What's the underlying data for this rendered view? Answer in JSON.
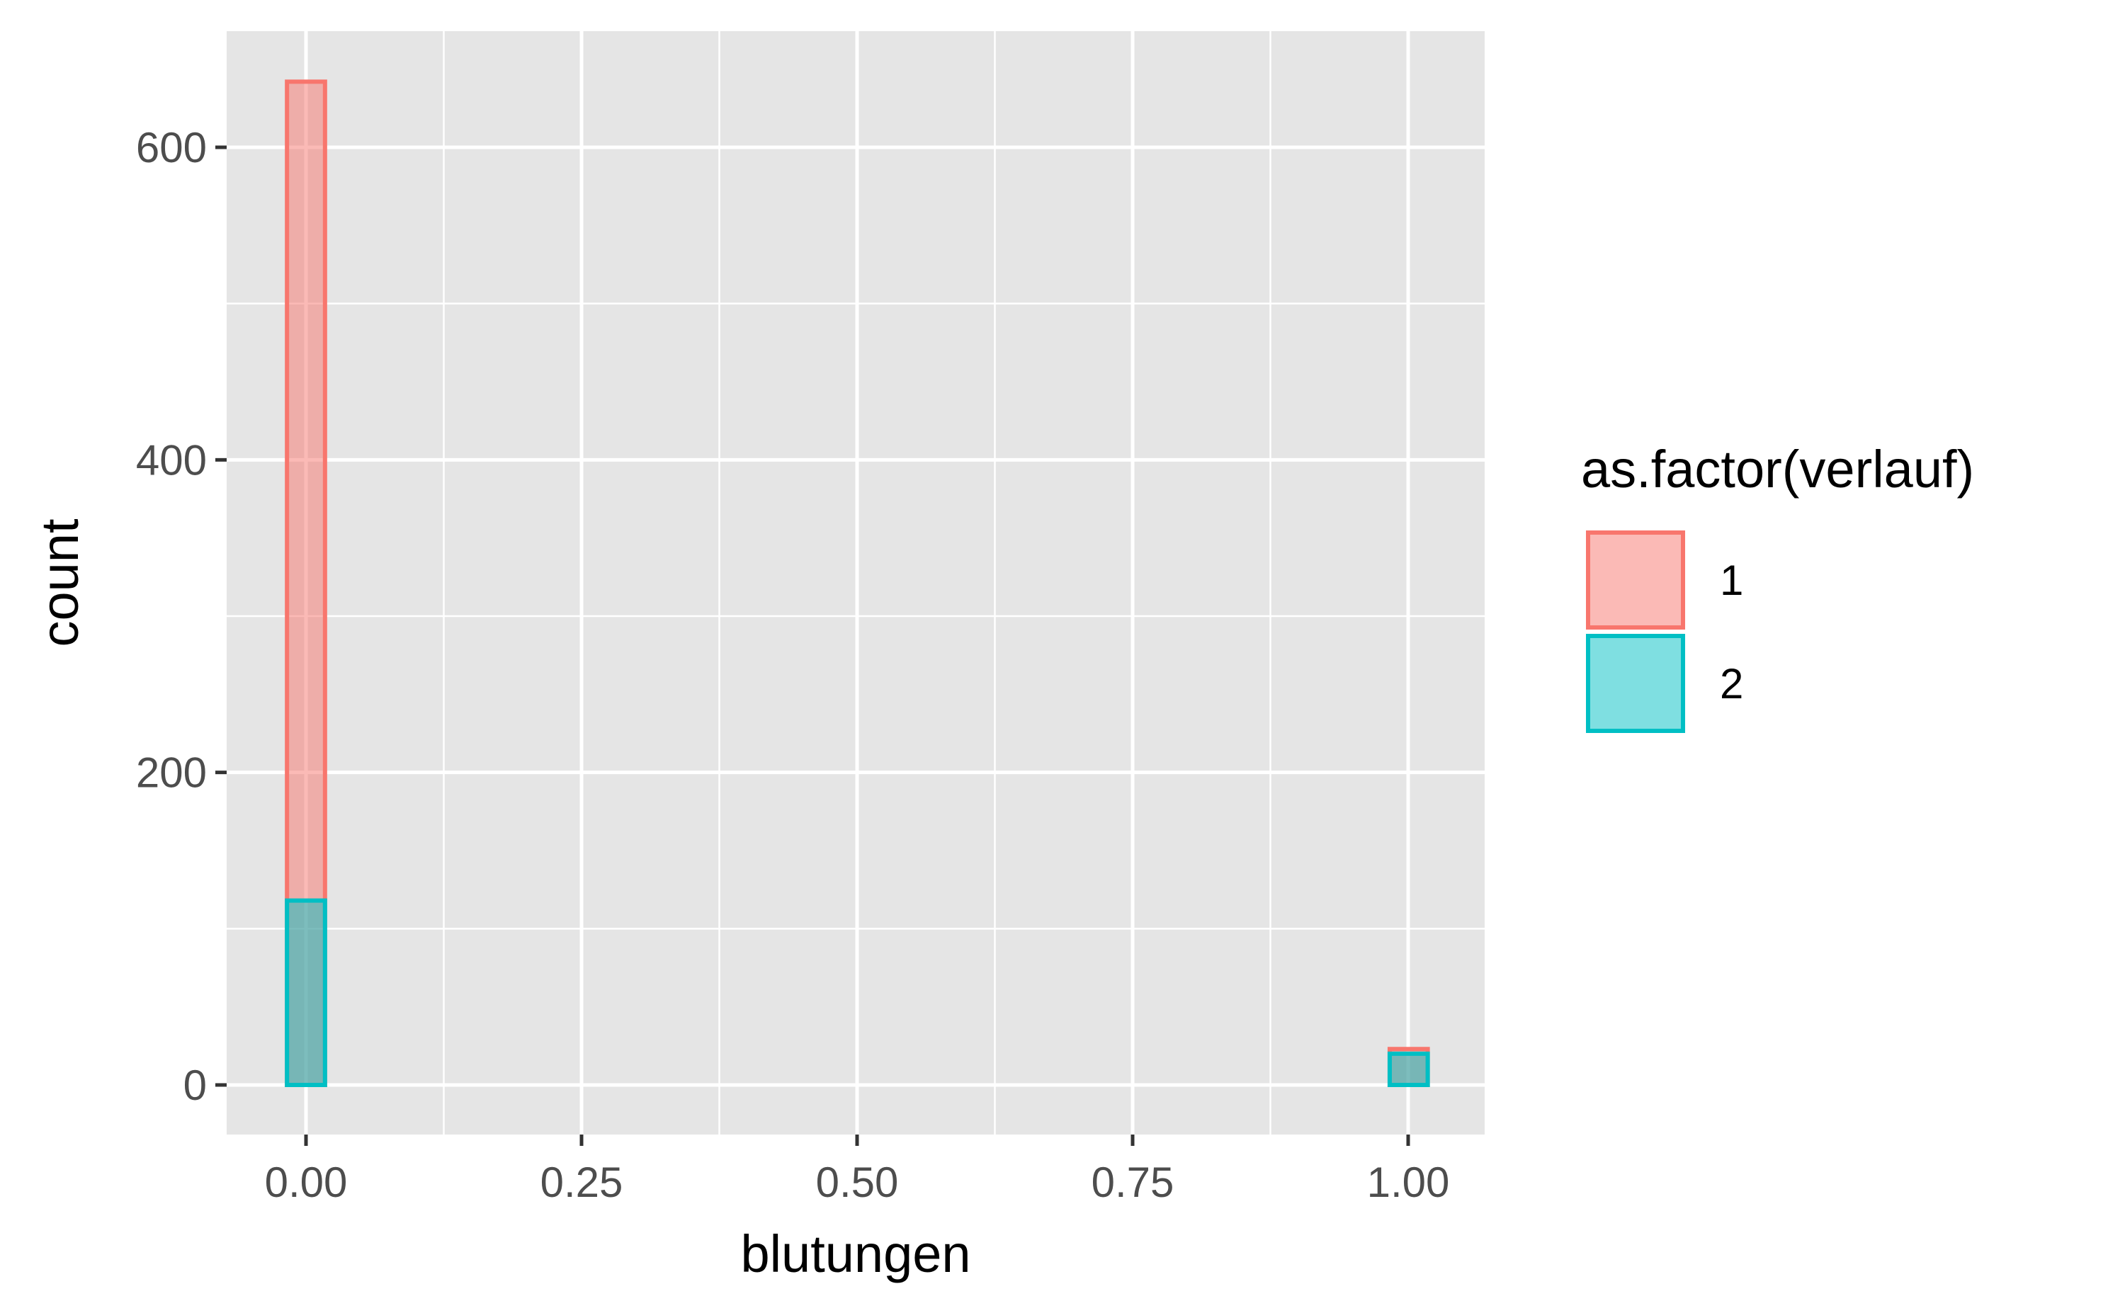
{
  "chart_data": {
    "type": "bar",
    "subtype": "histogram",
    "position": "identity",
    "xlabel": "blutungen",
    "ylabel": "count",
    "xlim": [
      -0.0625,
      1.0625
    ],
    "ylim": [
      0,
      660
    ],
    "x_ticks": [
      {
        "value": 0.0,
        "label": "0.00"
      },
      {
        "value": 0.25,
        "label": "0.25"
      },
      {
        "value": 0.5,
        "label": "0.50"
      },
      {
        "value": 0.75,
        "label": "0.75"
      },
      {
        "value": 1.0,
        "label": "1.00"
      }
    ],
    "y_ticks": [
      {
        "value": 0,
        "label": "0"
      },
      {
        "value": 200,
        "label": "200"
      },
      {
        "value": 400,
        "label": "400"
      },
      {
        "value": 600,
        "label": "600"
      }
    ],
    "bins": 30,
    "binwidth": 0.0345,
    "bin_start": -0.01725,
    "grid": true,
    "legend": {
      "title": "as.factor(verlauf)",
      "position": "right"
    },
    "series": [
      {
        "name": "1",
        "color": "#F8766D",
        "bins": [
          {
            "x": 0.0,
            "count": 642
          },
          {
            "x": 1.0,
            "count": 23
          }
        ]
      },
      {
        "name": "2",
        "color": "#00BFC4",
        "bins": [
          {
            "x": 0.0,
            "count": 118
          },
          {
            "x": 1.0,
            "count": 20
          }
        ]
      }
    ]
  }
}
